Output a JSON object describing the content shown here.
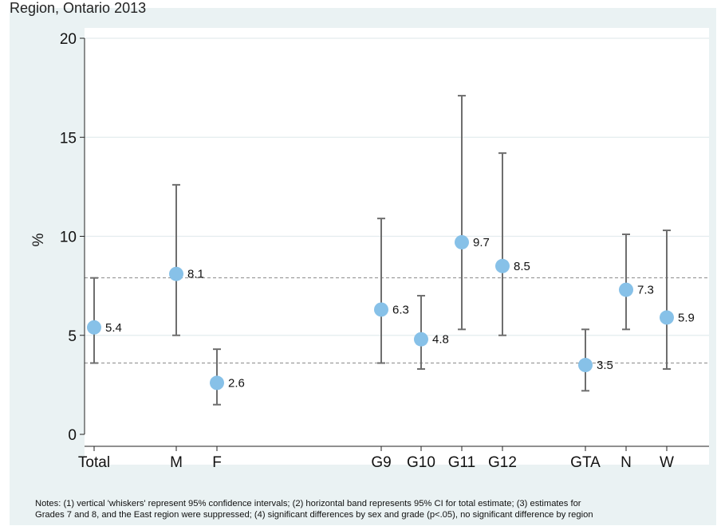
{
  "top_fragment": "Region, Ontario 2013",
  "notes": {
    "line1": "Notes: (1) vertical 'whiskers' represent 95% confidence intervals; (2) horizontal band represents 95% CI for total estimate; (3) estimates for",
    "line2": "Grades 7 and 8, and the East region were suppressed; (4) significant differences by sex and grade (p<.05), no significant difference by region"
  },
  "chart_data": {
    "type": "scatter",
    "title": "",
    "xlabel": "",
    "ylabel": "%",
    "ylim": [
      0,
      20
    ],
    "yticks": [
      0,
      5,
      10,
      15,
      20
    ],
    "categories": [
      "Total",
      "M",
      "F",
      "G9",
      "G10",
      "G11",
      "G12",
      "GTA",
      "N",
      "W"
    ],
    "values": [
      5.4,
      8.1,
      2.6,
      6.3,
      4.8,
      9.7,
      8.5,
      3.5,
      7.3,
      5.9
    ],
    "labels": [
      "5.4",
      "8.1",
      "2.6",
      "6.3",
      "4.8",
      "9.7",
      "8.5",
      "3.5",
      "7.3",
      "5.9"
    ],
    "ci_lower": [
      3.6,
      5.0,
      1.5,
      3.6,
      3.3,
      5.3,
      5.0,
      2.2,
      5.3,
      3.3
    ],
    "ci_upper": [
      7.9,
      12.6,
      4.3,
      10.9,
      7.0,
      17.1,
      14.2,
      5.3,
      10.1,
      10.3
    ],
    "reference_band": [
      3.6,
      7.9
    ],
    "grid": true,
    "legend": "none",
    "colors": {
      "marker": "#87c1e8",
      "whisker": "#6e6e6e",
      "grid": "#ffffff",
      "band": "#8a8a8a",
      "plot_bg": "#ffffff",
      "outer_bg": "#eaf2f3"
    }
  }
}
